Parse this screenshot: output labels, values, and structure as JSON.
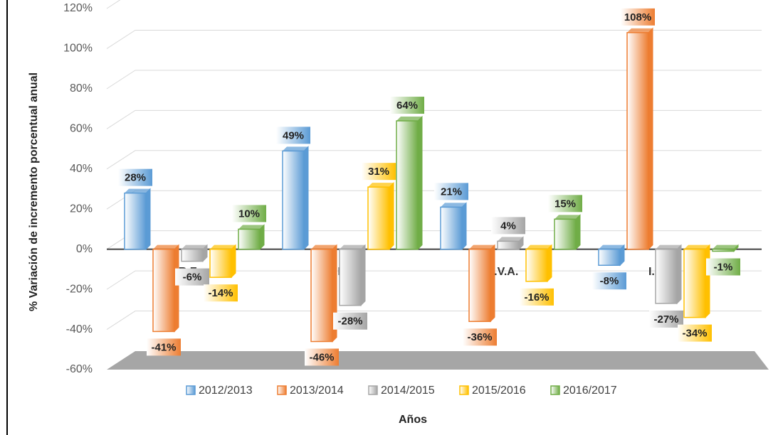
{
  "chart_data": {
    "type": "bar3d",
    "y_label": "% Variación de incremento porcentual anual",
    "x_label": "Años",
    "categories": [
      "R.F.",
      "I.R.",
      "I.V.A.",
      "I.C.E."
    ],
    "series": [
      {
        "name": "2012/2013",
        "color": "#5b9bd5",
        "values": [
          28,
          49,
          21,
          -8
        ],
        "value_labels": [
          "28%",
          "49%",
          "21%",
          "-8%"
        ]
      },
      {
        "name": "2013/2014",
        "color": "#ed7d31",
        "values": [
          -41,
          -46,
          -36,
          108
        ],
        "value_labels": [
          "-41%",
          "-46%",
          "-36%",
          "108%"
        ]
      },
      {
        "name": "2014/2015",
        "color": "#a5a5a5",
        "values": [
          -6,
          -28,
          4,
          -27
        ],
        "value_labels": [
          "-6%",
          "-28%",
          "4%",
          "-27%"
        ]
      },
      {
        "name": "2015/2016",
        "color": "#ffc000",
        "values": [
          -14,
          31,
          -16,
          -34
        ],
        "value_labels": [
          "-14%",
          "31%",
          "-16%",
          "-34%"
        ]
      },
      {
        "name": "2016/2017",
        "color": "#70ad47",
        "values": [
          10,
          64,
          15,
          -1
        ],
        "value_labels": [
          "10%",
          "64%",
          "15%",
          "-1%"
        ]
      }
    ],
    "ylim": [
      -60,
      120
    ],
    "yticks": [
      {
        "value": -60,
        "label": "-60%"
      },
      {
        "value": -40,
        "label": "-40%"
      },
      {
        "value": -20,
        "label": "-20%"
      },
      {
        "value": 0,
        "label": "0%"
      },
      {
        "value": 20,
        "label": "20%"
      },
      {
        "value": 40,
        "label": "40%"
      },
      {
        "value": 60,
        "label": "60%"
      },
      {
        "value": 80,
        "label": "80%"
      },
      {
        "value": 100,
        "label": "100%"
      },
      {
        "value": 120,
        "label": "120%"
      }
    ],
    "grid": true,
    "legend": "bottom"
  }
}
